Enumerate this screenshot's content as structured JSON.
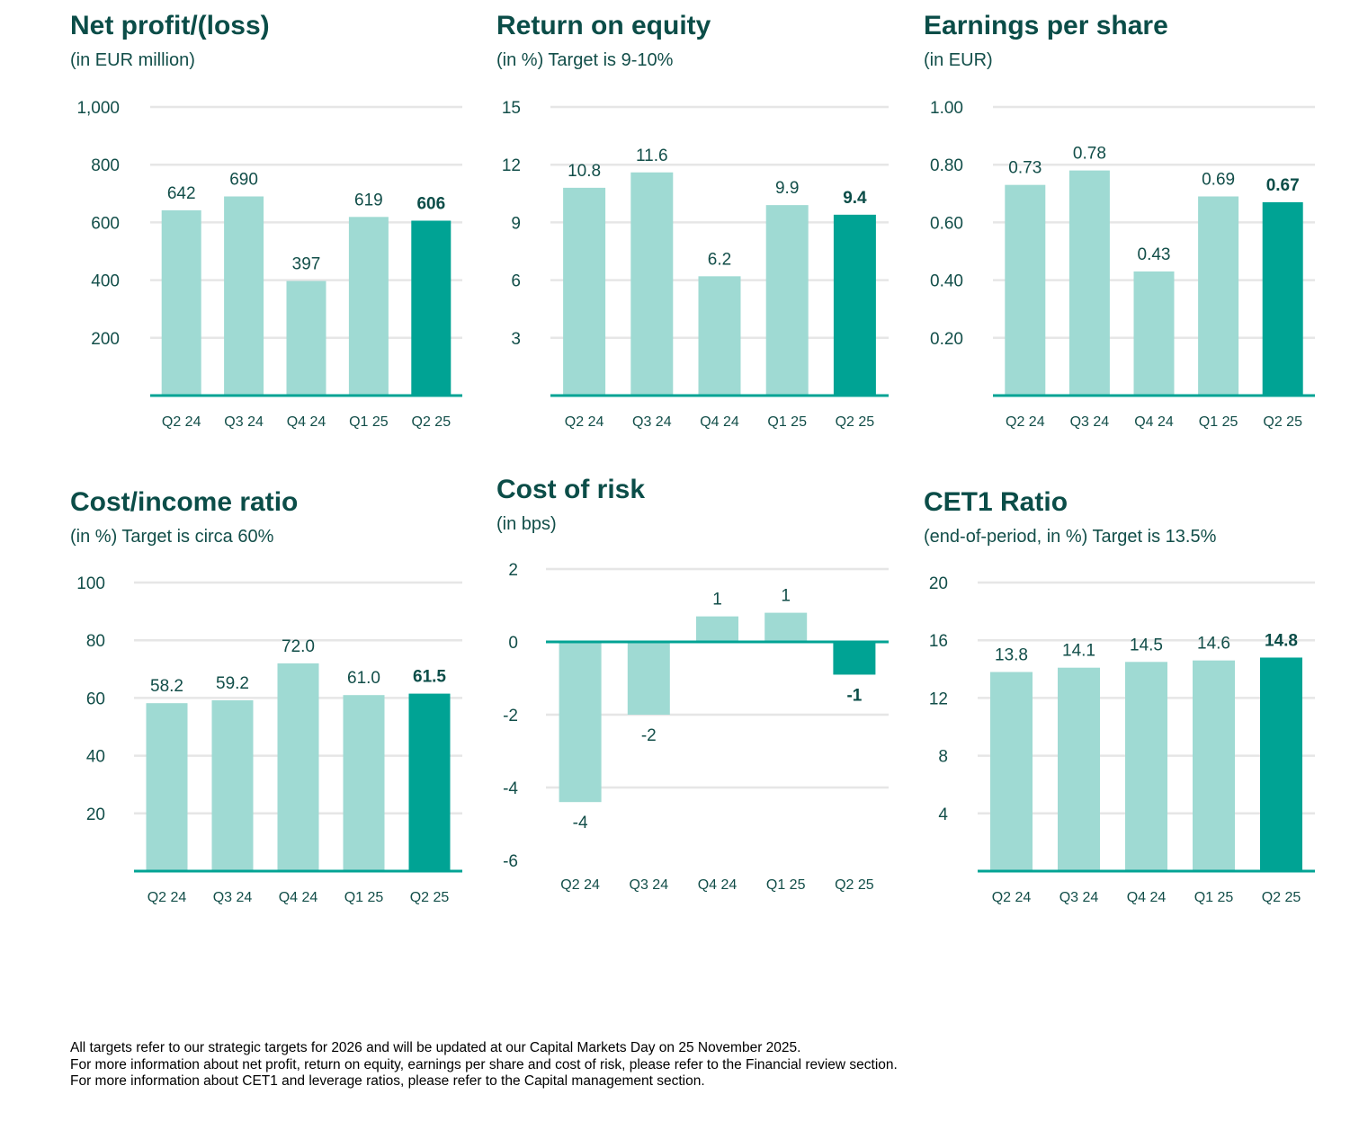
{
  "colors": {
    "bar_light": "#9fdad3",
    "bar_highlight": "#00a394",
    "axis": "#00a394",
    "grid": "#e6e6e6",
    "title": "#0b4d48"
  },
  "charts": [
    {
      "title": "Net profit/(loss)",
      "subtitle": "(in EUR million)"
    },
    {
      "title": "Return on equity",
      "subtitle": "(in %) Target is 9-10%"
    },
    {
      "title": "Earnings per share",
      "subtitle": "(in EUR)"
    },
    {
      "title": "Cost/income ratio",
      "subtitle": "(in %) Target is circa 60%"
    },
    {
      "title": "Cost of risk",
      "subtitle": "(in bps)"
    },
    {
      "title": "CET1 Ratio",
      "subtitle": "(end-of-period, in %) Target is 13.5%"
    }
  ],
  "chart_data": [
    {
      "type": "bar",
      "title": "Net profit/(loss)",
      "subtitle": "(in EUR million)",
      "categories": [
        "Q2 24",
        "Q3 24",
        "Q4 24",
        "Q1 25",
        "Q2 25"
      ],
      "values": [
        642,
        690,
        397,
        619,
        606
      ],
      "value_labels": [
        "642",
        "690",
        "397",
        "619",
        "606"
      ],
      "yticks": [
        200,
        400,
        600,
        800,
        1000
      ],
      "ytick_labels": [
        "200",
        "400",
        "600",
        "800",
        "1,000"
      ],
      "ylim": [
        0,
        1000
      ],
      "grid": true,
      "highlight_index": 4
    },
    {
      "type": "bar",
      "title": "Return on equity",
      "subtitle": "(in %) Target is 9-10%",
      "categories": [
        "Q2 24",
        "Q3 24",
        "Q4 24",
        "Q1 25",
        "Q2 25"
      ],
      "values": [
        10.8,
        11.6,
        6.2,
        9.9,
        9.4
      ],
      "value_labels": [
        "10.8",
        "11.6",
        "6.2",
        "9.9",
        "9.4"
      ],
      "yticks": [
        3,
        6,
        9,
        12,
        15
      ],
      "ytick_labels": [
        "3",
        "6",
        "9",
        "12",
        "15"
      ],
      "ylim": [
        0,
        15
      ],
      "grid": true,
      "highlight_index": 4
    },
    {
      "type": "bar",
      "title": "Earnings per share",
      "subtitle": "(in EUR)",
      "categories": [
        "Q2 24",
        "Q3 24",
        "Q4 24",
        "Q1 25",
        "Q2 25"
      ],
      "values": [
        0.73,
        0.78,
        0.43,
        0.69,
        0.67
      ],
      "value_labels": [
        "0.73",
        "0.78",
        "0.43",
        "0.69",
        "0.67"
      ],
      "yticks": [
        0.2,
        0.4,
        0.6,
        0.8,
        1.0
      ],
      "ytick_labels": [
        "0.20",
        "0.40",
        "0.60",
        "0.80",
        "1.00"
      ],
      "ylim": [
        0,
        1.0
      ],
      "grid": true,
      "highlight_index": 4
    },
    {
      "type": "bar",
      "title": "Cost/income ratio",
      "subtitle": "(in %) Target is circa 60%",
      "categories": [
        "Q2 24",
        "Q3 24",
        "Q4 24",
        "Q1 25",
        "Q2 25"
      ],
      "values": [
        58.2,
        59.2,
        72.0,
        61.0,
        61.5
      ],
      "value_labels": [
        "58.2",
        "59.2",
        "72.0",
        "61.0",
        "61.5"
      ],
      "yticks": [
        20,
        40,
        60,
        80,
        100
      ],
      "ytick_labels": [
        "20",
        "40",
        "60",
        "80",
        "100"
      ],
      "ylim": [
        0,
        100
      ],
      "grid": true,
      "highlight_index": 4
    },
    {
      "type": "bar",
      "title": "Cost of risk",
      "subtitle": "(in bps)",
      "categories": [
        "Q2 24",
        "Q3 24",
        "Q4 24",
        "Q1 25",
        "Q2 25"
      ],
      "values": [
        -4.4,
        -2.0,
        0.7,
        0.8,
        -0.9
      ],
      "value_labels": [
        "-4",
        "-2",
        "1",
        "1",
        "-1"
      ],
      "yticks": [
        -6,
        -4,
        -2,
        0,
        2
      ],
      "ytick_labels": [
        "-6",
        "-4",
        "-2",
        "0",
        "2"
      ],
      "ylim": [
        -6,
        2
      ],
      "grid": true,
      "highlight_index": 4
    },
    {
      "type": "bar",
      "title": "CET1 Ratio",
      "subtitle": "(end-of-period, in %) Target is 13.5%",
      "categories": [
        "Q2 24",
        "Q3 24",
        "Q4 24",
        "Q1 25",
        "Q2 25"
      ],
      "values": [
        13.8,
        14.1,
        14.5,
        14.6,
        14.8
      ],
      "value_labels": [
        "13.8",
        "14.1",
        "14.5",
        "14.6",
        "14.8"
      ],
      "yticks": [
        4,
        8,
        12,
        16,
        20
      ],
      "ytick_labels": [
        "4",
        "8",
        "12",
        "16",
        "20"
      ],
      "ylim": [
        0,
        20
      ],
      "grid": true,
      "highlight_index": 4
    }
  ],
  "footnotes": [
    "All targets refer to our strategic targets for 2026 and will be updated at our Capital Markets Day on 25 November 2025.",
    "For more information about net profit, return on equity, earnings per share and cost of risk, please refer to the Financial review section.",
    "For more information about CET1 and leverage ratios, please refer to the Capital management section."
  ]
}
